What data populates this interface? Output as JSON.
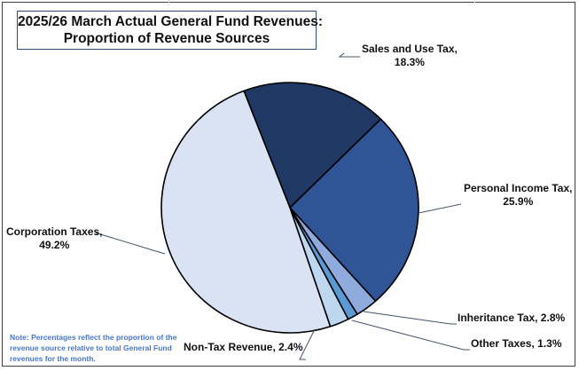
{
  "chart_data": {
    "type": "pie",
    "title": "2025/26 March Actual General Fund Revenues:",
    "subtitle": "Proportion of Revenue Sources",
    "start_angle_deg": -21,
    "direction": "clockwise",
    "slices": [
      {
        "label": "Sales and Use Tax",
        "value": 18.3,
        "display": "Sales and Use Tax,",
        "display2": "18.3%",
        "color": "#203864"
      },
      {
        "label": "Personal Income Tax",
        "value": 25.9,
        "display": "Personal Income Tax,",
        "display2": "25.9%",
        "color": "#2f5597"
      },
      {
        "label": "Inheritance Tax",
        "value": 2.8,
        "display": "Inheritance Tax, 2.8%",
        "display2": "",
        "color": "#8faadc"
      },
      {
        "label": "Other Taxes",
        "value": 1.3,
        "display": "Other Taxes, 1.3%",
        "display2": "",
        "color": "#5b9bd5"
      },
      {
        "label": "Non-Tax Revenue",
        "value": 2.4,
        "display": "Non-Tax Revenue, 2.4%",
        "display2": "",
        "color": "#bdd7ee"
      },
      {
        "label": "Corporation Taxes",
        "value": 49.2,
        "display": "Corporation Taxes,",
        "display2": "49.2%",
        "color": "#dae3f3"
      }
    ],
    "legend": "none",
    "data_labels": "outside-with-leader-lines"
  },
  "note": "Note: Percentages reflect the proportion of the revenue source relative to total General Fund revenues for the month.",
  "colors": {
    "leader_line": "#44546a",
    "note_text": "#4a78c8",
    "title_border": "#2f4b7c"
  }
}
